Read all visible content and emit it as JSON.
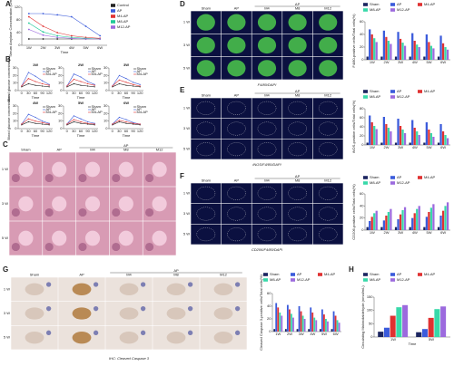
{
  "figure": {
    "panels": [
      "A",
      "B",
      "C",
      "D",
      "E",
      "F",
      "G",
      "H"
    ],
    "rows": [
      "1 W",
      "3 W",
      "5 W"
    ],
    "columns": [
      "Sham",
      "AP",
      "M4",
      "M8",
      "M12"
    ],
    "group_header": "AP",
    "captions": [
      "F4/80/DAPI",
      "iNOS/F4/80/DAPI",
      "CD206/F4/80/DAPI",
      "IHC: Cleaved Caspase 3"
    ]
  },
  "chart_data": [
    {
      "type": "line",
      "y_label": "Serum Amylase Concentration (U/mL)",
      "x_label": "Time",
      "categories": [
        "1W",
        "2W",
        "3W",
        "4W",
        "5W",
        "6W"
      ],
      "ylim": [
        0,
        120
      ],
      "yticks": [
        0,
        40,
        80,
        120
      ],
      "series": [
        {
          "name": "Control",
          "color": "#222222",
          "values": [
            20,
            20,
            20,
            20,
            20,
            20
          ]
        },
        {
          "name": "AP",
          "color": "#3b5bdb",
          "values": [
            100,
            100,
            96,
            90,
            60,
            30
          ]
        },
        {
          "name": "M4-AP",
          "color": "#e03131",
          "values": [
            90,
            60,
            40,
            30,
            25,
            22
          ]
        },
        {
          "name": "M8-AP",
          "color": "#20c997",
          "values": [
            70,
            42,
            30,
            25,
            22,
            20
          ]
        },
        {
          "name": "M12-AP",
          "color": "#9c6ade",
          "values": [
            50,
            32,
            25,
            22,
            20,
            20
          ]
        }
      ]
    },
    {
      "type": "line",
      "title": "1W",
      "y_label": "Blood glucose concentration",
      "x_label": "Time",
      "categories": [
        "0",
        "30",
        "60",
        "90",
        "120"
      ],
      "ylim": [
        0,
        30
      ],
      "yticks": [
        0,
        10,
        20,
        30
      ],
      "series": [
        {
          "name": "Sham",
          "color": "#222222",
          "values": [
            5,
            9,
            7,
            6,
            5
          ]
        },
        {
          "name": "AP",
          "color": "#3b5bdb",
          "values": [
            6,
            24,
            19,
            13,
            8
          ]
        },
        {
          "name": "M4-AP",
          "color": "#e03131",
          "values": [
            6,
            16,
            12,
            9,
            7
          ]
        }
      ]
    },
    {
      "type": "line",
      "title": "2W",
      "x_label": "Time",
      "categories": [
        "0",
        "30",
        "60",
        "90",
        "120"
      ],
      "ylim": [
        0,
        30
      ],
      "yticks": [
        0,
        10,
        20,
        30
      ],
      "series": [
        {
          "name": "Sham",
          "color": "#222222",
          "values": [
            5,
            9,
            7,
            6,
            5
          ]
        },
        {
          "name": "AP",
          "color": "#3b5bdb",
          "values": [
            6,
            22,
            18,
            12,
            8
          ]
        },
        {
          "name": "M4-AP",
          "color": "#e03131",
          "values": [
            6,
            15,
            12,
            9,
            7
          ]
        }
      ]
    },
    {
      "type": "line",
      "title": "3W",
      "x_label": "Time",
      "categories": [
        "0",
        "30",
        "60",
        "90",
        "120"
      ],
      "ylim": [
        0,
        30
      ],
      "yticks": [
        0,
        10,
        20,
        30
      ],
      "series": [
        {
          "name": "Sham",
          "color": "#222222",
          "values": [
            5,
            9,
            7,
            6,
            5
          ]
        },
        {
          "name": "AP",
          "color": "#3b5bdb",
          "values": [
            6,
            20,
            16,
            11,
            8
          ]
        },
        {
          "name": "M4-AP",
          "color": "#e03131",
          "values": [
            6,
            14,
            11,
            8,
            6
          ]
        }
      ]
    },
    {
      "type": "line",
      "title": "4W",
      "y_label": "Blood glucose concentration",
      "x_label": "Time",
      "categories": [
        "0",
        "30",
        "60",
        "90",
        "120"
      ],
      "ylim": [
        0,
        30
      ],
      "yticks": [
        0,
        10,
        20,
        30
      ],
      "series": [
        {
          "name": "Sham",
          "color": "#222222",
          "values": [
            5,
            9,
            7,
            6,
            5
          ]
        },
        {
          "name": "AP",
          "color": "#3b5bdb",
          "values": [
            6,
            19,
            15,
            10,
            7
          ]
        },
        {
          "name": "M4-AP",
          "color": "#e03131",
          "values": [
            6,
            13,
            10,
            8,
            6
          ]
        }
      ]
    },
    {
      "type": "line",
      "title": "5W",
      "x_label": "Time",
      "categories": [
        "0",
        "30",
        "60",
        "90",
        "120"
      ],
      "ylim": [
        0,
        30
      ],
      "yticks": [
        0,
        10,
        20,
        30
      ],
      "series": [
        {
          "name": "Sham",
          "color": "#222222",
          "values": [
            5,
            9,
            7,
            6,
            5
          ]
        },
        {
          "name": "AP",
          "color": "#3b5bdb",
          "values": [
            6,
            17,
            13,
            9,
            7
          ]
        },
        {
          "name": "M4-AP",
          "color": "#e03131",
          "values": [
            6,
            12,
            9,
            7,
            6
          ]
        }
      ]
    },
    {
      "type": "line",
      "title": "6W",
      "x_label": "Time",
      "categories": [
        "0",
        "30",
        "60",
        "90",
        "120"
      ],
      "ylim": [
        0,
        30
      ],
      "yticks": [
        0,
        10,
        20,
        30
      ],
      "series": [
        {
          "name": "Sham",
          "color": "#222222",
          "values": [
            5,
            9,
            7,
            6,
            5
          ]
        },
        {
          "name": "AP",
          "color": "#3b5bdb",
          "values": [
            6,
            15,
            12,
            8,
            6
          ]
        },
        {
          "name": "M4-AP",
          "color": "#e03131",
          "values": [
            6,
            11,
            9,
            7,
            6
          ]
        }
      ]
    },
    {
      "type": "bar",
      "y_label": "F4/80-positive cells/Total cells(%)",
      "categories": [
        "1W",
        "2W",
        "3W",
        "4W",
        "5W",
        "6W"
      ],
      "ylim": [
        0,
        60
      ],
      "yticks": [
        0,
        20,
        40,
        60
      ],
      "series": [
        {
          "name": "Sham",
          "color": "#1c2560",
          "values": [
            5,
            5,
            5,
            5,
            5,
            5
          ]
        },
        {
          "name": "AP",
          "color": "#3b5bdb",
          "values": [
            48,
            46,
            44,
            42,
            40,
            38
          ]
        },
        {
          "name": "M4-AP",
          "color": "#e03131",
          "values": [
            40,
            36,
            33,
            30,
            28,
            26
          ]
        },
        {
          "name": "M8-AP",
          "color": "#38d9a9",
          "values": [
            34,
            30,
            27,
            24,
            22,
            20
          ]
        },
        {
          "name": "M12-AP",
          "color": "#9c6ade",
          "values": [
            28,
            25,
            22,
            20,
            18,
            16
          ]
        }
      ]
    },
    {
      "type": "bar",
      "y_label": "iNOS-positive cells/Total cells(%)",
      "categories": [
        "1W",
        "2W",
        "3W",
        "4W",
        "5W",
        "6W"
      ],
      "ylim": [
        0,
        80
      ],
      "yticks": [
        0,
        20,
        40,
        60,
        80
      ],
      "series": [
        {
          "name": "Sham",
          "color": "#1c2560",
          "values": [
            5,
            5,
            5,
            5,
            5,
            5
          ]
        },
        {
          "name": "AP",
          "color": "#3b5bdb",
          "values": [
            65,
            62,
            58,
            55,
            50,
            46
          ]
        },
        {
          "name": "M4-AP",
          "color": "#e03131",
          "values": [
            50,
            46,
            42,
            38,
            34,
            30
          ]
        },
        {
          "name": "M8-AP",
          "color": "#38d9a9",
          "values": [
            42,
            38,
            34,
            30,
            26,
            22
          ]
        },
        {
          "name": "M12-AP",
          "color": "#9c6ade",
          "values": [
            35,
            30,
            26,
            22,
            18,
            15
          ]
        }
      ]
    },
    {
      "type": "bar",
      "y_label": "CD206-positive cells/Total cells(%)",
      "categories": [
        "1W",
        "2W",
        "3W",
        "4W",
        "5W",
        "6W"
      ],
      "ylim": [
        0,
        60
      ],
      "yticks": [
        0,
        20,
        40,
        60
      ],
      "series": [
        {
          "name": "Sham",
          "color": "#1c2560",
          "values": [
            5,
            5,
            5,
            5,
            5,
            5
          ]
        },
        {
          "name": "AP",
          "color": "#3b5bdb",
          "values": [
            15,
            16,
            18,
            20,
            22,
            24
          ]
        },
        {
          "name": "M4-AP",
          "color": "#e03131",
          "values": [
            22,
            24,
            26,
            28,
            30,
            32
          ]
        },
        {
          "name": "M8-AP",
          "color": "#38d9a9",
          "values": [
            28,
            30,
            33,
            35,
            37,
            40
          ]
        },
        {
          "name": "M12-AP",
          "color": "#9c6ade",
          "values": [
            32,
            35,
            38,
            40,
            43,
            46
          ]
        }
      ]
    },
    {
      "type": "bar",
      "y_label": "Cleaved Caspase 3-positive cells/Total cells(%)",
      "categories": [
        "1W",
        "2W",
        "3W",
        "4W",
        "5W",
        "6W"
      ],
      "ylim": [
        0,
        60
      ],
      "yticks": [
        0,
        20,
        40,
        60
      ],
      "series": [
        {
          "name": "Sham",
          "color": "#1c2560",
          "values": [
            4,
            4,
            4,
            4,
            4,
            4
          ]
        },
        {
          "name": "AP",
          "color": "#3b5bdb",
          "values": [
            45,
            42,
            40,
            38,
            35,
            32
          ]
        },
        {
          "name": "M4-AP",
          "color": "#e03131",
          "values": [
            38,
            35,
            32,
            30,
            27,
            25
          ]
        },
        {
          "name": "M8-AP",
          "color": "#38d9a9",
          "values": [
            30,
            28,
            25,
            22,
            20,
            18
          ]
        },
        {
          "name": "M12-AP",
          "color": "#9c6ade",
          "values": [
            25,
            22,
            20,
            18,
            16,
            14
          ]
        }
      ]
    },
    {
      "type": "bar",
      "y_label": "Circulating Malondialdehyde (nmol/mL)",
      "x_label": "Time",
      "categories": [
        "1W",
        "5W"
      ],
      "ylim": [
        0,
        150
      ],
      "yticks": [
        0,
        50,
        100,
        150
      ],
      "series": [
        {
          "name": "Sham",
          "color": "#1c2560",
          "values": [
            20,
            18
          ]
        },
        {
          "name": "AP",
          "color": "#3b5bdb",
          "values": [
            35,
            30
          ]
        },
        {
          "name": "M4-AP",
          "color": "#e03131",
          "values": [
            80,
            72
          ]
        },
        {
          "name": "M8-AP",
          "color": "#38d9a9",
          "values": [
            112,
            105
          ]
        },
        {
          "name": "M12-AP",
          "color": "#9c6ade",
          "values": [
            120,
            115
          ]
        }
      ]
    }
  ]
}
